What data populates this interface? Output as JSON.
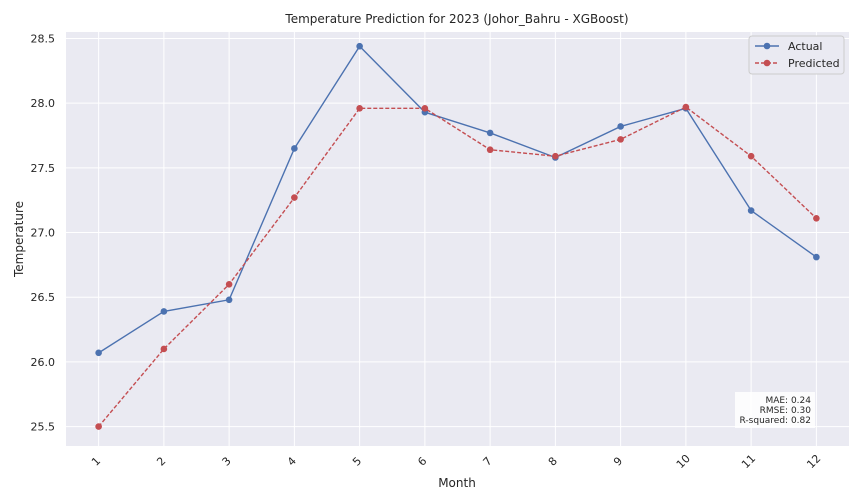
{
  "chart_data": {
    "type": "line",
    "title": "Temperature Prediction for 2023 (Johor_Bahru - XGBoost)",
    "xlabel": "Month",
    "ylabel": "Temperature",
    "categories": [
      "1",
      "2",
      "3",
      "4",
      "5",
      "6",
      "7",
      "8",
      "9",
      "10",
      "11",
      "12"
    ],
    "x": [
      1,
      2,
      3,
      4,
      5,
      6,
      7,
      8,
      9,
      10,
      11,
      12
    ],
    "ylim": [
      25.35,
      28.55
    ],
    "yticks": [
      "25.5",
      "26.0",
      "26.5",
      "27.0",
      "27.5",
      "28.0",
      "28.5"
    ],
    "grid": true,
    "legend_position": "top-right",
    "series": [
      {
        "name": "Actual",
        "color": "#4c72b0",
        "line_style": "solid",
        "marker": "circle",
        "values": [
          26.07,
          26.39,
          26.48,
          27.65,
          28.44,
          27.93,
          27.77,
          27.58,
          27.82,
          27.96,
          27.17,
          26.81
        ]
      },
      {
        "name": "Predicted",
        "color": "#c44e52",
        "line_style": "dashed",
        "marker": "circle",
        "values": [
          25.5,
          26.1,
          26.6,
          27.27,
          27.96,
          27.96,
          27.64,
          27.59,
          27.72,
          27.97,
          27.59,
          27.11
        ]
      }
    ],
    "metrics": [
      "MAE: 0.24",
      "RMSE: 0.30",
      "R-squared: 0.82"
    ]
  }
}
